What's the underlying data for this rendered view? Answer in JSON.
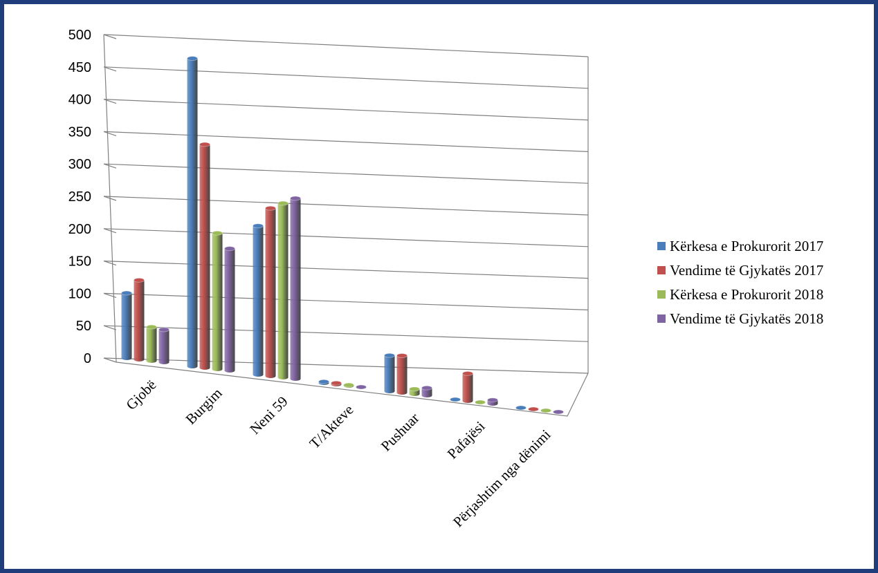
{
  "chart_data": {
    "type": "bar",
    "title": "",
    "xlabel": "",
    "ylabel": "",
    "ylim": [
      0,
      500
    ],
    "yticks": [
      "0",
      "50",
      "100",
      "150",
      "200",
      "250",
      "300",
      "350",
      "400",
      "450",
      "500"
    ],
    "grid": true,
    "legend_position": "right",
    "categories": [
      "Gjobë",
      "Burgim",
      "Neni 59",
      "T/Akteve",
      "Pushuar",
      "Pafajësi",
      "Përjashtim nga dënimi"
    ],
    "series": [
      {
        "name": "Kërkesa e Prokurorit 2017",
        "color": "#4a7ebb",
        "values": [
          100,
          480,
          235,
          2,
          58,
          0,
          0
        ]
      },
      {
        "name": "Vendime të Gjykatës 2017",
        "color": "#c0504d",
        "values": [
          122,
          348,
          265,
          2,
          60,
          45,
          0
        ]
      },
      {
        "name": "Kërkesa e Prokurorit 2018",
        "color": "#9bbb59",
        "values": [
          52,
          212,
          275,
          1,
          8,
          0,
          0
        ]
      },
      {
        "name": "Vendime të Gjykatës 2018",
        "color": "#8064a2",
        "values": [
          50,
          190,
          285,
          0,
          12,
          6,
          0
        ]
      }
    ]
  }
}
